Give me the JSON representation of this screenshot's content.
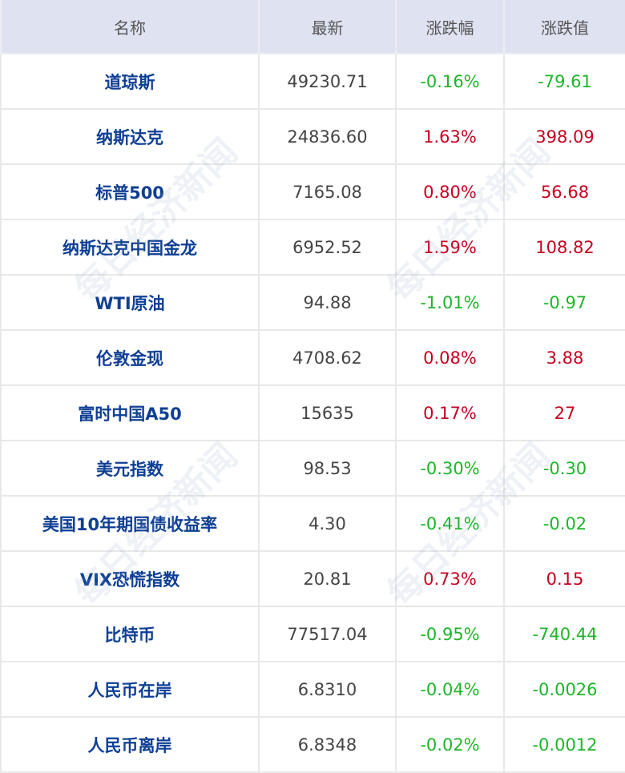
{
  "header": {
    "name": "名称",
    "latest": "最新",
    "change_pct": "涨跌幅",
    "change_val": "涨跌值"
  },
  "colors": {
    "up": "#c8001e",
    "down": "#1cb628",
    "name": "#0e3f94",
    "header_bg": "#dfe3f1"
  },
  "watermark": "每日经济新闻",
  "rows": [
    {
      "name": "道琼斯",
      "latest": "49230.71",
      "pct": "-0.16%",
      "val": "-79.61",
      "dir": "down"
    },
    {
      "name": "纳斯达克",
      "latest": "24836.60",
      "pct": "1.63%",
      "val": "398.09",
      "dir": "up"
    },
    {
      "name": "标普500",
      "latest": "7165.08",
      "pct": "0.80%",
      "val": "56.68",
      "dir": "up"
    },
    {
      "name": "纳斯达克中国金龙",
      "latest": "6952.52",
      "pct": "1.59%",
      "val": "108.82",
      "dir": "up"
    },
    {
      "name": "WTI原油",
      "latest": "94.88",
      "pct": "-1.01%",
      "val": "-0.97",
      "dir": "down"
    },
    {
      "name": "伦敦金现",
      "latest": "4708.62",
      "pct": "0.08%",
      "val": "3.88",
      "dir": "up"
    },
    {
      "name": "富时中国A50",
      "latest": "15635",
      "pct": "0.17%",
      "val": "27",
      "dir": "up"
    },
    {
      "name": "美元指数",
      "latest": "98.53",
      "pct": "-0.30%",
      "val": "-0.30",
      "dir": "down"
    },
    {
      "name": "美国10年期国债收益率",
      "latest": "4.30",
      "pct": "-0.41%",
      "val": "-0.02",
      "dir": "down"
    },
    {
      "name": "VIX恐慌指数",
      "latest": "20.81",
      "pct": "0.73%",
      "val": "0.15",
      "dir": "up"
    },
    {
      "name": "比特币",
      "latest": "77517.04",
      "pct": "-0.95%",
      "val": "-740.44",
      "dir": "down"
    },
    {
      "name": "人民币在岸",
      "latest": "6.8310",
      "pct": "-0.04%",
      "val": "-0.0026",
      "dir": "down"
    },
    {
      "name": "人民币离岸",
      "latest": "6.8348",
      "pct": "-0.02%",
      "val": "-0.0012",
      "dir": "down"
    }
  ]
}
